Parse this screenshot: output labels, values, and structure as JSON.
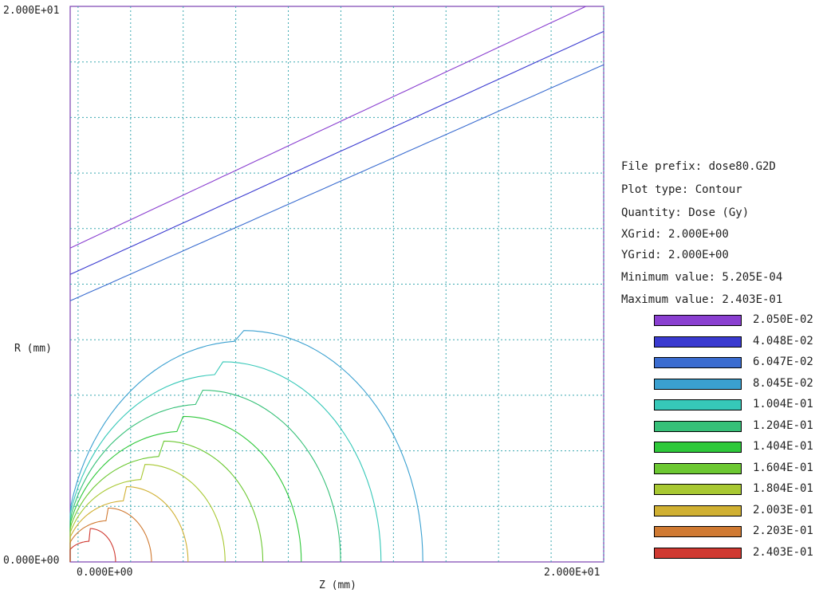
{
  "axes": {
    "y_top_label": "2.000E+01",
    "y_bottom_label": "0.000E+00",
    "y_title": "R (mm)",
    "x_left_label": "0.000E+00",
    "x_right_label": "2.000E+01",
    "x_title": "Z (mm)"
  },
  "info": {
    "file_prefix": "File prefix: dose80.G2D",
    "plot_type": "Plot type: Contour",
    "quantity": "Quantity: Dose (Gy)",
    "xgrid": "XGrid:   2.000E+00",
    "ygrid": "YGrid:   2.000E+00",
    "min_value": "Minimum value:   5.205E-04",
    "max_value": "Maximum value:  2.403E-01"
  },
  "legend": [
    {
      "label": "2.050E-02",
      "color": "#8a3fd0"
    },
    {
      "label": "4.048E-02",
      "color": "#3a3ad0"
    },
    {
      "label": "6.047E-02",
      "color": "#3a6cd0"
    },
    {
      "label": "8.045E-02",
      "color": "#3aa0d0"
    },
    {
      "label": "1.004E-01",
      "color": "#36c8b8"
    },
    {
      "label": "1.204E-01",
      "color": "#36c078"
    },
    {
      "label": "1.404E-01",
      "color": "#2ec83a"
    },
    {
      "label": "1.604E-01",
      "color": "#6cc832"
    },
    {
      "label": "1.804E-01",
      "color": "#a8c832"
    },
    {
      "label": "2.003E-01",
      "color": "#d0b032"
    },
    {
      "label": "2.203E-01",
      "color": "#d07a32"
    },
    {
      "label": "2.403E-01",
      "color": "#d03a32"
    }
  ],
  "colors": {
    "frame": "#7a3fb0",
    "grid": "#3aa8b0"
  },
  "chart_data": {
    "type": "contour",
    "xlabel": "Z (mm)",
    "ylabel": "R (mm)",
    "xlim": [
      -0.3,
      20.0
    ],
    "ylim": [
      0.0,
      20.0
    ],
    "grid": true,
    "grid_spacing": [
      2.0,
      2.0
    ],
    "min_value": 0.0005205,
    "max_value": 0.2403,
    "levels": [
      0.0205,
      0.04048,
      0.06047,
      0.08045,
      0.1004,
      0.1204,
      0.1404,
      0.1604,
      0.1804,
      0.2003,
      0.2203,
      0.2403
    ]
  }
}
